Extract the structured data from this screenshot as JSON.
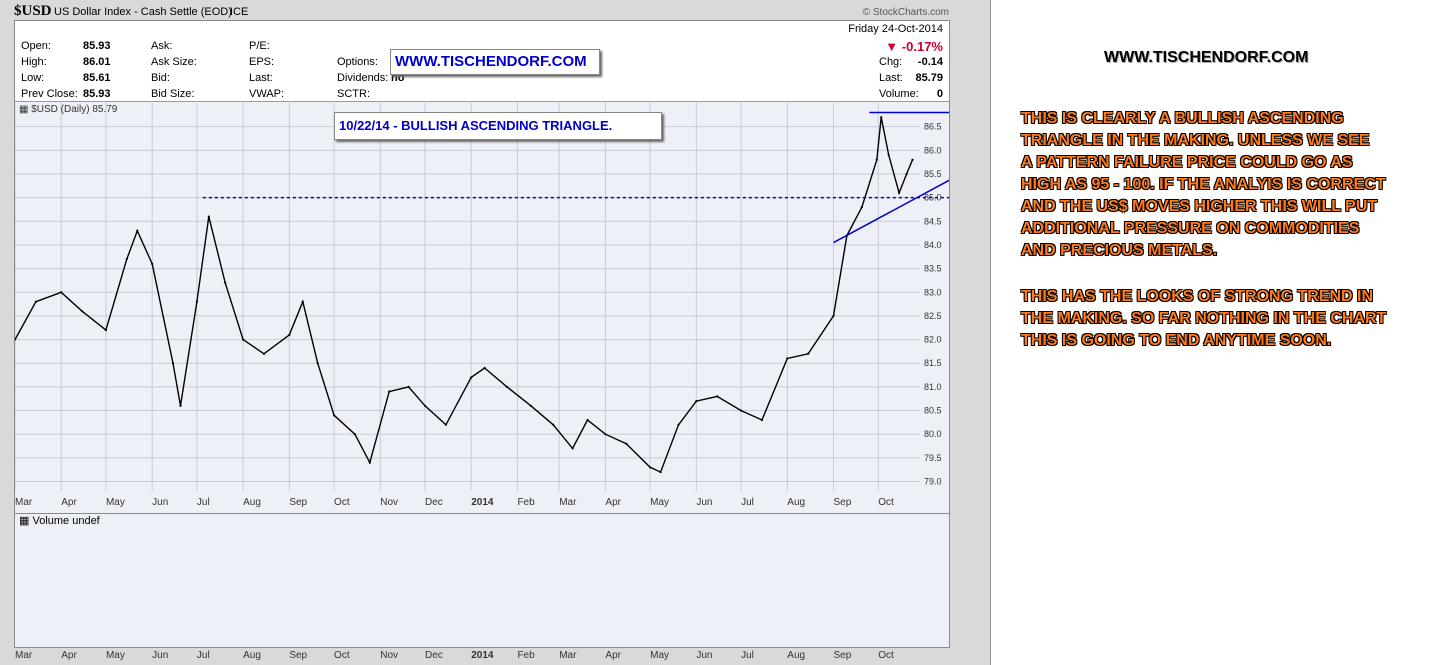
{
  "header": {
    "symbol": "$USD",
    "name": "US Dollar Index - Cash Settle (EOD)",
    "exchange": "ICE",
    "source": "© StockCharts.com"
  },
  "quote": {
    "open_label": "Open:",
    "open": "85.93",
    "high_label": "High:",
    "high": "86.01",
    "low_label": "Low:",
    "low": "85.61",
    "prev_label": "Prev Close:",
    "prev": "85.93",
    "ask_label": "Ask:",
    "asksize_label": "Ask Size:",
    "bid_label": "Bid:",
    "bidsize_label": "Bid Size:",
    "pe_label": "P/E:",
    "eps_label": "EPS:",
    "last_label2": "Last:",
    "vwap_label": "VWAP:",
    "options_label": "Options:",
    "dividends_label": "Dividends:",
    "dividends_value": "no",
    "sctr_label": "SCTR:",
    "date": "Friday  24-Oct-2014",
    "change_pct": "-0.17%",
    "chg_label": "Chg:",
    "chg": "-0.14",
    "last_label": "Last:",
    "last": "85.79",
    "volume_label": "Volume:",
    "volume": "0"
  },
  "watermark_box": "WWW.TISCHENDORF.COM",
  "annotation_box": "10/22/14 - BULLISH ASCENDING TRIANGLE.",
  "price_legend": "$USD (Daily) 85.79",
  "volume_legend": "Volume undef",
  "right_panel": {
    "title": "WWW.TISCHENDORF.COM",
    "para1": [
      "THIS IS CLEARLY A BULLISH ASCENDING",
      "TRIANGLE IN THE MAKING. UNLESS WE SEE",
      "A PATTERN FAILURE PRICE COULD GO AS",
      "HIGH AS 95 - 100. IF THE ANALYIS IS CORRECT",
      "AND THE US$ MOVES HIGHER THIS WILL PUT",
      "ADDITIONAL PRESSURE ON COMMODITIES",
      "AND PRECIOUS METALS."
    ],
    "para2": [
      "THIS HAS THE LOOKS OF STRONG TREND IN",
      "THE MAKING. SO FAR NOTHING IN THE CHART",
      "THIS IS GOING TO END ANYTIME SOON."
    ]
  },
  "colors": {
    "price": "#000000",
    "trendline": "#0000cc",
    "negative": "#cc0033",
    "annotation_text": "#ff7a1e"
  },
  "chart_data": {
    "type": "line",
    "title": "$USD (Daily) 85.79",
    "ylim": [
      78.8,
      87.0
    ],
    "y_ticks": [
      79.0,
      79.5,
      80.0,
      80.5,
      81.0,
      81.5,
      82.0,
      82.5,
      83.0,
      83.5,
      84.0,
      84.5,
      85.0,
      85.5,
      86.0,
      86.5
    ],
    "x_ticks": [
      "Mar",
      "Apr",
      "May",
      "Jun",
      "Jul",
      "Aug",
      "Sep",
      "Oct",
      "Nov",
      "Dec",
      "2014",
      "Feb",
      "Mar",
      "Apr",
      "May",
      "Jun",
      "Jul",
      "Aug",
      "Sep",
      "Oct"
    ],
    "grid": true,
    "series": [
      {
        "name": "$USD",
        "x": [
          "2013-03-01",
          "2013-03-15",
          "2013-04-01",
          "2013-04-15",
          "2013-05-01",
          "2013-05-15",
          "2013-05-22",
          "2013-06-01",
          "2013-06-15",
          "2013-06-20",
          "2013-07-01",
          "2013-07-09",
          "2013-07-20",
          "2013-08-01",
          "2013-08-15",
          "2013-09-01",
          "2013-09-10",
          "2013-09-20",
          "2013-10-01",
          "2013-10-15",
          "2013-10-25",
          "2013-11-07",
          "2013-11-20",
          "2013-12-01",
          "2013-12-15",
          "2014-01-01",
          "2014-01-10",
          "2014-01-25",
          "2014-02-10",
          "2014-02-25",
          "2014-03-10",
          "2014-03-20",
          "2014-04-01",
          "2014-04-15",
          "2014-05-01",
          "2014-05-08",
          "2014-05-20",
          "2014-06-01",
          "2014-06-15",
          "2014-07-01",
          "2014-07-15",
          "2014-08-01",
          "2014-08-15",
          "2014-09-01",
          "2014-09-10",
          "2014-09-20",
          "2014-09-30",
          "2014-10-03",
          "2014-10-08",
          "2014-10-15",
          "2014-10-20",
          "2014-10-24"
        ],
        "values": [
          82.0,
          82.8,
          83.0,
          82.6,
          82.2,
          83.7,
          84.3,
          83.6,
          81.5,
          80.6,
          82.8,
          84.6,
          83.2,
          82.0,
          81.7,
          82.1,
          82.8,
          81.5,
          80.4,
          80.0,
          79.4,
          80.9,
          81.0,
          80.6,
          80.2,
          81.2,
          81.4,
          81.0,
          80.6,
          80.2,
          79.7,
          80.3,
          80.0,
          79.8,
          79.3,
          79.2,
          80.2,
          80.7,
          80.8,
          80.5,
          80.3,
          81.6,
          81.7,
          82.5,
          84.2,
          84.8,
          85.8,
          86.7,
          85.9,
          85.1,
          85.5,
          85.8
        ]
      }
    ],
    "annotations": [
      {
        "type": "resistance",
        "y": 85.0
      },
      {
        "type": "resistance",
        "y": 86.8
      },
      {
        "type": "trendline",
        "from": [
          "2014-09-01",
          84.05
        ],
        "to": [
          "2014-10-24",
          84.95
        ]
      }
    ]
  }
}
